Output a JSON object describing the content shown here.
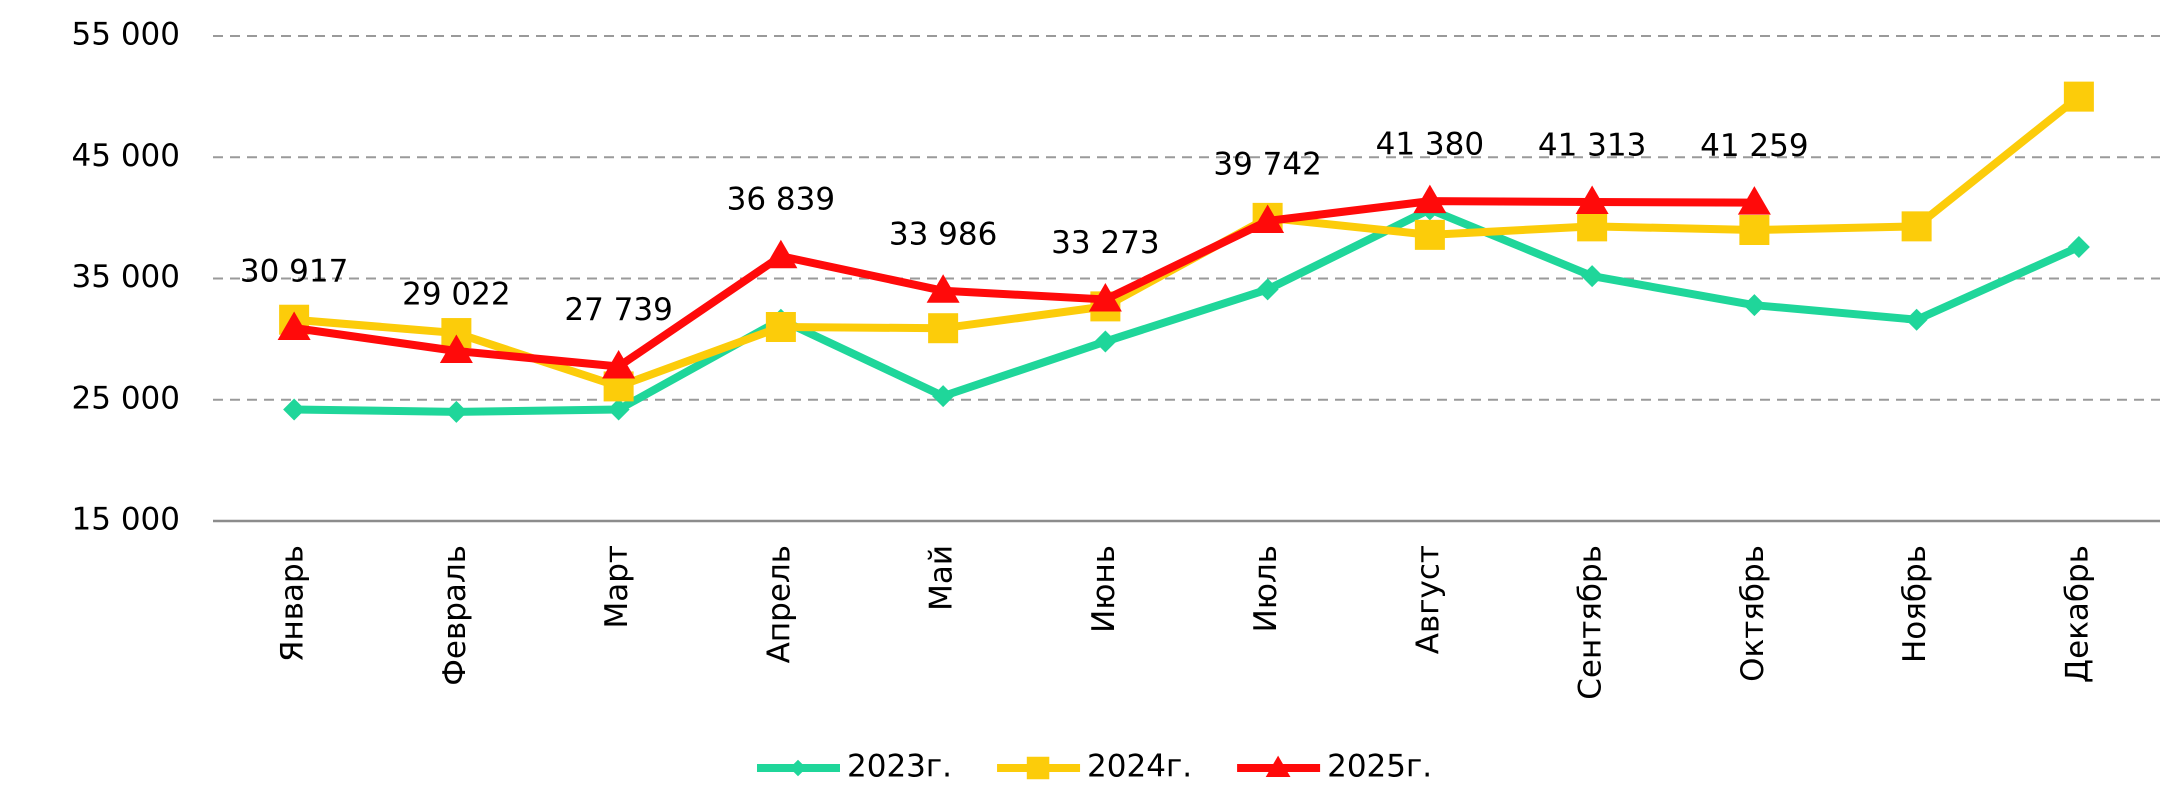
{
  "chart_data": {
    "type": "line",
    "categories": [
      "Январь",
      "Февраль",
      "Март",
      "Апрель",
      "Май",
      "Июнь",
      "Июль",
      "Август",
      "Сентябрь",
      "Октябрь",
      "Ноябрь",
      "Декабрь"
    ],
    "series": [
      {
        "name": "2023г.",
        "color": "#1fd69a",
        "marker": "diamond",
        "values": [
          24200,
          24000,
          24200,
          31600,
          25300,
          29800,
          34100,
          40700,
          35200,
          32800,
          31600,
          37600
        ]
      },
      {
        "name": "2024г.",
        "color": "#fccc0a",
        "marker": "square",
        "values": [
          31600,
          30500,
          26100,
          31000,
          30900,
          32700,
          40000,
          38600,
          39300,
          39000,
          39300,
          50000
        ]
      },
      {
        "name": "2025г.",
        "color": "#ff0a0a",
        "marker": "triangle",
        "values": [
          30917,
          29022,
          27739,
          36839,
          33986,
          33273,
          39742,
          41380,
          41313,
          41259,
          null,
          null
        ],
        "value_labels": [
          "30 917",
          "29 022",
          "27 739",
          "36 839",
          "33 986",
          "33 273",
          "39 742",
          "41 380",
          "41 313",
          "41 259",
          null,
          null
        ]
      }
    ],
    "ylim": [
      15000,
      55000
    ],
    "yticks": [
      {
        "value": 15000,
        "label": "15 000"
      },
      {
        "value": 25000,
        "label": "25 000"
      },
      {
        "value": 35000,
        "label": "35 000"
      },
      {
        "value": 45000,
        "label": "45 000"
      },
      {
        "value": 55000,
        "label": "55 000"
      }
    ],
    "grid": true,
    "legend": "bottom"
  }
}
